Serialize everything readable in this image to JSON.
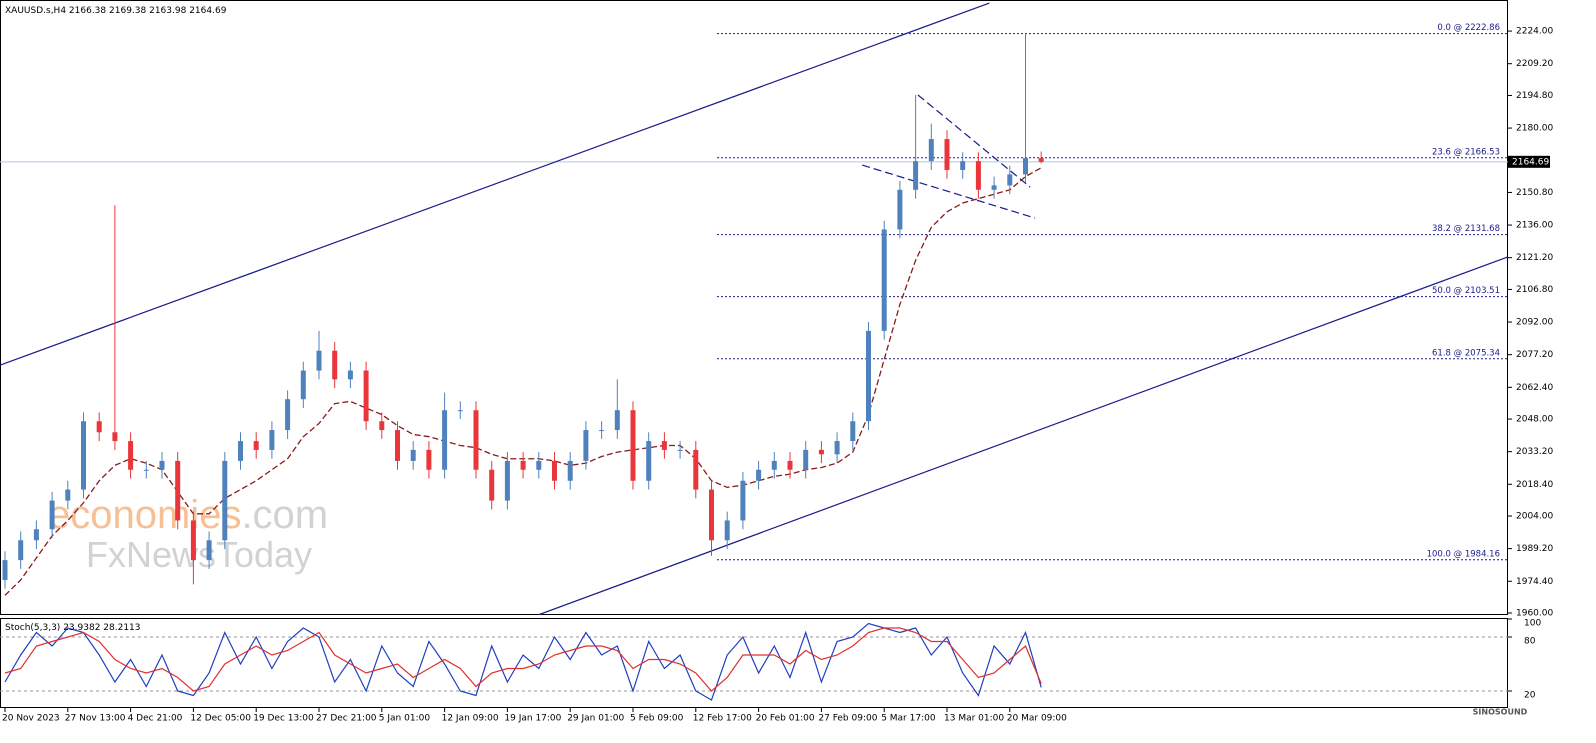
{
  "chart_data": [
    {
      "type": "candlestick",
      "title": "XAUUSD.s,H4",
      "categories": [
        "20 Nov 2023",
        null,
        null,
        null,
        "27 Nov 13:00",
        null,
        null,
        null,
        "4 Dec 21:00",
        null,
        null,
        null,
        "12 Dec 05:00",
        null,
        null,
        null,
        "19 Dec 13:00",
        null,
        null,
        null,
        "27 Dec 21:00",
        null,
        null,
        null,
        "5 Jan 01:00",
        null,
        null,
        null,
        "12 Jan 09:00",
        null,
        null,
        null,
        "19 Jan 17:00",
        null,
        null,
        null,
        "29 Jan 01:00",
        null,
        null,
        null,
        "5 Feb 09:00",
        null,
        null,
        null,
        "12 Feb 17:00",
        null,
        null,
        null,
        "20 Feb 01:00",
        null,
        null,
        null,
        "27 Feb 09:00",
        null,
        null,
        null,
        "5 Mar 17:00",
        null,
        null,
        null,
        "13 Mar 01:00",
        null,
        null,
        null,
        "20 Mar 09:00",
        null,
        null
      ],
      "open": [
        1975,
        1984,
        1993,
        1998,
        2011,
        2016,
        2047,
        2042,
        2038,
        2025,
        2025,
        2029,
        2002,
        1984,
        1993,
        2029,
        2038,
        2034,
        2043,
        2057,
        2070,
        2079,
        2066,
        2070,
        2047,
        2043,
        2029,
        2034,
        2025,
        2052,
        2052,
        2025,
        2011,
        2029,
        2025,
        2029,
        2020,
        2029,
        2043,
        2043,
        2052,
        2020,
        2038,
        2034,
        2034,
        2016,
        1993,
        2002,
        2020,
        2025,
        2029,
        2025,
        2034,
        2032,
        2038,
        2047,
        2088,
        2134,
        2152,
        2165,
        2175,
        2161,
        2165,
        2152,
        2154,
        2159,
        2166.38
      ],
      "high": [
        1988,
        1997,
        2002,
        2015,
        2020,
        2051,
        2051,
        2145,
        2042,
        2029,
        2033,
        2033,
        2006,
        1997,
        2033,
        2042,
        2042,
        2047,
        2061,
        2074,
        2088,
        2083,
        2074,
        2074,
        2051,
        2047,
        2038,
        2038,
        2060,
        2056,
        2056,
        2029,
        2033,
        2033,
        2033,
        2033,
        2033,
        2047,
        2047,
        2066,
        2056,
        2042,
        2042,
        2038,
        2038,
        2020,
        2006,
        2024,
        2029,
        2033,
        2033,
        2038,
        2038,
        2042,
        2051,
        2092,
        2138,
        2156,
        2195,
        2182,
        2179,
        2169,
        2169,
        2158,
        2163,
        2222.86,
        2169.38
      ],
      "low": [
        1971,
        1980,
        1989,
        1994,
        2007,
        2012,
        2038,
        2034,
        2021,
        2021,
        2021,
        1998,
        1973,
        1980,
        1989,
        2025,
        2030,
        2030,
        2039,
        2053,
        2066,
        2062,
        2062,
        2043,
        2039,
        2025,
        2025,
        2021,
        2021,
        2048,
        2021,
        2007,
        2007,
        2021,
        2021,
        2016,
        2016,
        2025,
        2039,
        2039,
        2016,
        2016,
        2030,
        2030,
        2012,
        1986,
        1989,
        1998,
        2016,
        2021,
        2021,
        2021,
        2028,
        2028,
        2034,
        2043,
        2084,
        2130,
        2148,
        2161,
        2157,
        2157,
        2148,
        2148,
        2150,
        2155,
        2163.98
      ],
      "close": [
        1984,
        1993,
        1998,
        2011,
        2016,
        2047,
        2042,
        2038,
        2025,
        2025,
        2029,
        2002,
        1984,
        1993,
        2029,
        2038,
        2034,
        2043,
        2057,
        2070,
        2079,
        2066,
        2070,
        2047,
        2043,
        2029,
        2034,
        2025,
        2052,
        2052,
        2025,
        2011,
        2029,
        2025,
        2029,
        2020,
        2029,
        2043,
        2043,
        2052,
        2020,
        2038,
        2034,
        2034,
        2016,
        1993,
        2002,
        2020,
        2025,
        2029,
        2025,
        2034,
        2032,
        2038,
        2047,
        2088,
        2134,
        2152,
        2165,
        2175,
        2161,
        2165,
        2152,
        2154,
        2159,
        2166.38,
        2164.69
      ],
      "up_color": "#4f81bd",
      "down_color": "#e8363b",
      "ma": {
        "color": "#8b1a1a",
        "values": [
          1968,
          1975,
          1985,
          1995,
          2002,
          2010,
          2020,
          2027,
          2030,
          2028,
          2025,
          2015,
          2005,
          2005,
          2012,
          2016,
          2020,
          2025,
          2030,
          2040,
          2046,
          2055,
          2056,
          2053,
          2050,
          2045,
          2041,
          2040,
          2038,
          2036,
          2035,
          2032,
          2030,
          2030,
          2030,
          2029,
          2027,
          2028,
          2031,
          2033,
          2034,
          2035,
          2036,
          2036,
          2030,
          2020,
          2017,
          2018,
          2020,
          2022,
          2023,
          2025,
          2026,
          2028,
          2033,
          2050,
          2075,
          2100,
          2120,
          2135,
          2142,
          2146,
          2148,
          2150,
          2152,
          2158,
          2162
        ]
      },
      "ylim": [
        1959.1,
        2238.1
      ],
      "yticks": [
        {
          "value": 1960,
          "label": "1960.00"
        },
        {
          "value": 1974.4,
          "label": "1974.40"
        },
        {
          "value": 1989.2,
          "label": "1989.20"
        },
        {
          "value": 2004,
          "label": "2004.00"
        },
        {
          "value": 2018.4,
          "label": "2018.40"
        },
        {
          "value": 2033.2,
          "label": "2033.20"
        },
        {
          "value": 2048,
          "label": "2048.00"
        },
        {
          "value": 2062.4,
          "label": "2062.40"
        },
        {
          "value": 2077.2,
          "label": "2077.20"
        },
        {
          "value": 2092,
          "label": "2092.00"
        },
        {
          "value": 2106.8,
          "label": "2106.80"
        },
        {
          "value": 2121.2,
          "label": "2121.20"
        },
        {
          "value": 2136,
          "label": "2136.00"
        },
        {
          "value": 2150.8,
          "label": "2150.80"
        },
        {
          "value": 2180,
          "label": "2180.00"
        },
        {
          "value": 2194.8,
          "label": "2194.80"
        },
        {
          "value": 2209.2,
          "label": "2209.20"
        },
        {
          "value": 2224,
          "label": "2224.00"
        }
      ],
      "fib": [
        {
          "value": 2222.86,
          "label": "0.0 @ 2222.86"
        },
        {
          "value": 2166.53,
          "label": "23.6 @ 2166.53"
        },
        {
          "value": 2131.68,
          "label": "38.2 @ 2131.68"
        },
        {
          "value": 2103.51,
          "label": "50.0 @ 2103.51"
        },
        {
          "value": 2075.34,
          "label": "61.8 @ 2075.34"
        },
        {
          "value": 1984.16,
          "label": "100.0 @ 1984.16"
        }
      ],
      "trendlines": [
        {
          "x": [
            -0.3,
            62.7
          ],
          "y": [
            2072.5,
            2236.7
          ],
          "color": "#1a1a8c",
          "style": "solid"
        },
        {
          "x": [
            33.95,
            95.7
          ],
          "y": [
            1959.1,
            2121.5
          ],
          "color": "#1a1a8c",
          "style": "solid"
        },
        {
          "x": [
            58.15,
            65.3
          ],
          "y": [
            2195,
            2153.2
          ],
          "color": "#1a1a8c",
          "style": "dashed"
        },
        {
          "x": [
            54.6,
            65.6
          ],
          "y": [
            2163.2,
            2139.2
          ],
          "color": "#1a1a8c",
          "style": "dashed"
        }
      ]
    },
    {
      "type": "line",
      "title": "Stoch(5,3,3)",
      "series": [
        {
          "color": "#1f3fbf",
          "values": [
            30,
            60,
            85,
            70,
            90,
            85,
            60,
            30,
            55,
            25,
            60,
            20,
            15,
            40,
            85,
            50,
            80,
            45,
            75,
            90,
            80,
            30,
            55,
            20,
            70,
            40,
            25,
            75,
            50,
            20,
            15,
            70,
            30,
            60,
            45,
            80,
            55,
            85,
            60,
            70,
            20,
            75,
            45,
            60,
            20,
            10,
            60,
            80,
            40,
            70,
            35,
            85,
            30,
            75,
            80,
            95,
            90,
            85,
            90,
            60,
            80,
            40,
            15,
            70,
            50,
            85,
            23.9382
          ]
        },
        {
          "color": "#e03030",
          "values": [
            40,
            45,
            70,
            75,
            80,
            85,
            75,
            55,
            45,
            40,
            45,
            35,
            20,
            25,
            50,
            60,
            70,
            60,
            65,
            75,
            85,
            60,
            50,
            40,
            45,
            50,
            35,
            45,
            55,
            45,
            25,
            40,
            45,
            45,
            50,
            60,
            65,
            70,
            70,
            65,
            45,
            55,
            55,
            50,
            40,
            20,
            35,
            60,
            60,
            60,
            50,
            65,
            55,
            60,
            70,
            85,
            90,
            90,
            85,
            75,
            75,
            55,
            35,
            40,
            55,
            70,
            28.2113
          ]
        }
      ],
      "ylim": [
        0,
        100
      ],
      "yticks": [
        100,
        80,
        20
      ],
      "levels": [
        80,
        20
      ]
    }
  ],
  "watermarks": {
    "brand": "economies",
    "suffix": ".com",
    "second": "FxNewsToday",
    "logo": "SINOSOUND"
  }
}
